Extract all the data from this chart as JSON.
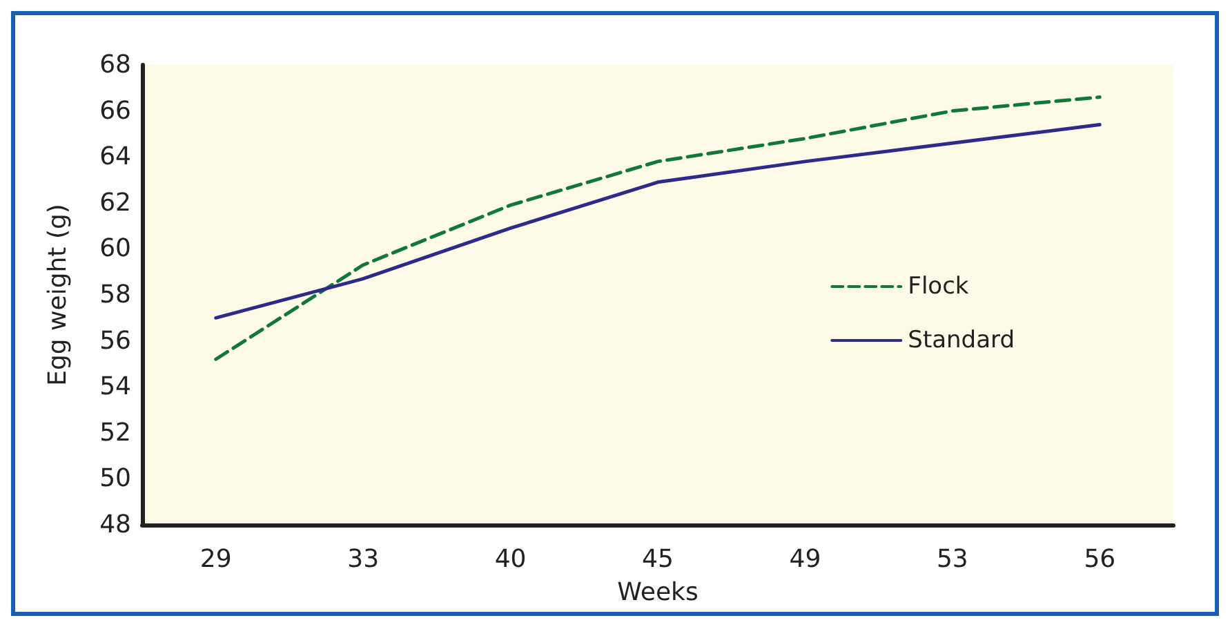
{
  "chart_data": {
    "type": "line",
    "xlabel": "Weeks",
    "ylabel": "Egg weight (g)",
    "categories": [
      "29",
      "33",
      "40",
      "45",
      "49",
      "53",
      "56"
    ],
    "series": [
      {
        "name": "Flock",
        "color": "#12783a",
        "line_style": "dashed",
        "values": [
          55.2,
          59.3,
          61.9,
          63.8,
          64.8,
          66.0,
          66.6
        ]
      },
      {
        "name": "Standard",
        "color": "#2e2a8c",
        "line_style": "solid",
        "values": [
          57.0,
          58.7,
          60.9,
          62.9,
          63.8,
          64.6,
          65.4
        ]
      }
    ],
    "ylim": [
      48,
      68
    ],
    "yticks": [
      48,
      50,
      52,
      54,
      56,
      58,
      60,
      62,
      64,
      66,
      68
    ],
    "grid": false,
    "legend": "right",
    "marker": "none"
  }
}
